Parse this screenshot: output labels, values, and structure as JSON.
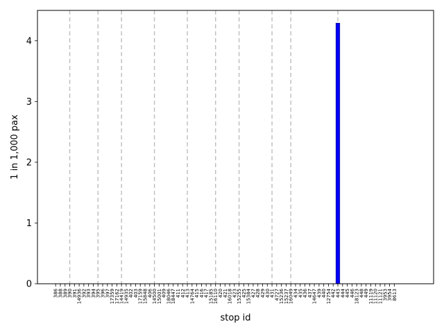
{
  "chart_data": {
    "type": "bar",
    "title": "",
    "xlabel": "stop id",
    "ylabel": "1 in 1,000 pax",
    "ylim": [
      0,
      4.5
    ],
    "yticks": [
      0,
      1,
      2,
      3,
      4
    ],
    "grid": false,
    "bar_color": "#0000ff",
    "bar_edge_color": "#1a1a8a",
    "vline_color": "#bdbdbd",
    "categories": [
      "386",
      "388",
      "389",
      "390",
      "391",
      "14936",
      "392",
      "393",
      "394",
      "395",
      "396",
      "397",
      "17359",
      "17162",
      "14419",
      "14935",
      "402",
      "403",
      "17159",
      "15848",
      "406",
      "14500",
      "15001",
      "409",
      "18046",
      "18447",
      "411",
      "412",
      "413",
      "14764",
      "415",
      "416",
      "417",
      "15185",
      "16110",
      "420",
      "421",
      "16018",
      "423",
      "15255",
      "425",
      "15384",
      "427",
      "428",
      "429",
      "430",
      "431",
      "4727",
      "15236",
      "15237",
      "16049",
      "434",
      "435",
      "436",
      "437",
      "14647",
      "439",
      "440",
      "12754",
      "442",
      "443",
      "444",
      "445",
      "446",
      "18123",
      "448",
      "449",
      "11119",
      "11120",
      "11121",
      "3953",
      "3954",
      "8613"
    ],
    "values": [
      0,
      0,
      0,
      0,
      0,
      0,
      0,
      0,
      0,
      0,
      0,
      0,
      0,
      0,
      0,
      0,
      0,
      0,
      0,
      0,
      0,
      0,
      0,
      0,
      0,
      0,
      0,
      0,
      0,
      0,
      0,
      0,
      0,
      0,
      0,
      0,
      0,
      0,
      0,
      0,
      0,
      0,
      0,
      0,
      0,
      0,
      0,
      0,
      0,
      0,
      0,
      0,
      0,
      0,
      0,
      0,
      0,
      0,
      0,
      0,
      4.29,
      0,
      0,
      0,
      0,
      0,
      0,
      0,
      0,
      0,
      0,
      0,
      0
    ],
    "dashed_vlines_at_categories": [
      "390",
      "395",
      "14419",
      "14500",
      "413",
      "16110",
      "15255",
      "431",
      "16049",
      "443"
    ]
  }
}
